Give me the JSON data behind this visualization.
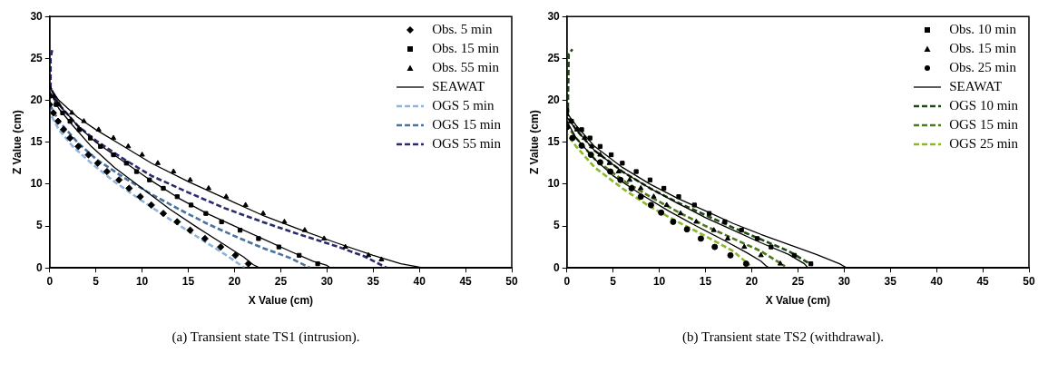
{
  "chart_data": [
    {
      "type": "scatter",
      "title": "(a) Transient state TS1 (intrusion).",
      "xlabel": "X Value (cm)",
      "ylabel": "Z Value (cm)",
      "xlim": [
        0,
        50
      ],
      "ylim": [
        0,
        30
      ],
      "xticks": [
        0,
        5,
        10,
        15,
        20,
        25,
        30,
        35,
        40,
        45,
        50
      ],
      "yticks": [
        0,
        5,
        10,
        15,
        20,
        25,
        30
      ],
      "grid": false,
      "legend": "top right",
      "series": [
        {
          "name": "Obs. 5 min",
          "color": "#000000",
          "marker": "diamond",
          "x": [
            0,
            0.4,
            0.9,
            1.5,
            2.2,
            3.1,
            4.2,
            5.2,
            6.2,
            7.5,
            8.6,
            9.8,
            11,
            12.3,
            13.8,
            15.2,
            16.8,
            18.5,
            20.1,
            21.5
          ],
          "values": [
            19.5,
            18.5,
            17.5,
            16.5,
            15.5,
            14.5,
            13.5,
            12.5,
            11.5,
            10.5,
            9.5,
            8.5,
            7.5,
            6.5,
            5.5,
            4.5,
            3.5,
            2.5,
            1.5,
            0.5
          ]
        },
        {
          "name": "Obs. 15 min",
          "color": "#000000",
          "marker": "square",
          "x": [
            0,
            0.7,
            1.4,
            2.2,
            3.2,
            4.4,
            5.5,
            6.9,
            8.3,
            9.4,
            10.8,
            12.3,
            13.8,
            15.3,
            16.9,
            18.6,
            20.6,
            22.6,
            24.8,
            27.0,
            29.0
          ],
          "values": [
            20.5,
            19.5,
            18.5,
            17.5,
            16.5,
            15.5,
            14.5,
            13.5,
            12.5,
            11.5,
            10.5,
            9.5,
            8.5,
            7.5,
            6.5,
            5.5,
            4.5,
            3.5,
            2.5,
            1.5,
            0.5
          ]
        },
        {
          "name": "Obs. 55 min",
          "color": "#000000",
          "marker": "triangle",
          "x": [
            0,
            0.5,
            1.0,
            2.4,
            3.7,
            5.3,
            6.9,
            8.5,
            10.0,
            11.7,
            13.4,
            15.2,
            17.2,
            19.1,
            21.2,
            23.1,
            25.4,
            27.6,
            29.7,
            32.0,
            34.5,
            35.9
          ],
          "values": [
            21.5,
            20.5,
            19.5,
            18.5,
            17.5,
            16.5,
            15.5,
            14.5,
            13.5,
            12.5,
            11.5,
            10.5,
            9.5,
            8.5,
            7.5,
            6.5,
            5.5,
            4.5,
            3.5,
            2.5,
            1.5,
            1.0
          ]
        },
        {
          "type": "line",
          "name": "SEAWAT",
          "color": "#000000",
          "marker": "none",
          "line_style": "solid",
          "x": [
            0,
            1,
            2.5,
            4.5,
            7,
            10,
            13,
            16,
            19,
            21,
            22,
            22.7
          ],
          "values": [
            21,
            19,
            17,
            14.5,
            12,
            9.5,
            7,
            4.8,
            2.7,
            1.3,
            0.4,
            0
          ]
        },
        {
          "type": "line",
          "color": "#000000",
          "marker": "none",
          "line_style": "solid",
          "x": [
            0,
            1,
            3,
            5,
            8,
            11,
            14,
            17,
            20,
            23,
            26,
            28.5,
            30,
            30.4
          ],
          "values": [
            21,
            19.5,
            17,
            15,
            12.7,
            10.4,
            8.3,
            6.5,
            5,
            3.5,
            2,
            0.8,
            0.3,
            0
          ]
        },
        {
          "type": "line",
          "color": "#000000",
          "marker": "none",
          "line_style": "solid",
          "x": [
            0,
            1,
            3,
            5,
            8,
            11,
            15,
            19,
            23,
            27,
            31,
            35,
            38,
            39.5,
            40.4
          ],
          "values": [
            21.5,
            20,
            18,
            16.5,
            14.5,
            12.5,
            10.3,
            8.3,
            6.3,
            4.6,
            3,
            1.5,
            0.5,
            0.2,
            0
          ]
        },
        {
          "type": "line",
          "name": "OGS 5 min",
          "color": "#92b4dc",
          "marker": "none",
          "line_style": "dashed",
          "x": [
            0,
            1,
            2.5,
            4.5,
            7,
            10,
            13,
            16,
            19,
            21.1
          ],
          "values": [
            18.5,
            16.5,
            14.5,
            12.5,
            10.3,
            8,
            5.8,
            3.7,
            1.6,
            0
          ]
        },
        {
          "type": "line",
          "name": "OGS 15 min",
          "color": "#4a73a0",
          "marker": "none",
          "line_style": "dashed",
          "x": [
            0,
            1,
            3,
            5,
            8,
            11,
            14,
            17,
            20,
            23,
            26,
            28.2
          ],
          "values": [
            19.5,
            17.5,
            15,
            13,
            10.8,
            8.8,
            7,
            5.3,
            3.8,
            2.4,
            1.2,
            0
          ]
        },
        {
          "type": "line",
          "name": "OGS 55 min",
          "color": "#2a2a6e",
          "marker": "none",
          "line_style": "dashed",
          "x": [
            0.3,
            0.1,
            0.1,
            1,
            3,
            5,
            8,
            11,
            15,
            19,
            23,
            27,
            31,
            34,
            36.5
          ],
          "values": [
            26.2,
            25,
            21.5,
            19.5,
            17,
            15.2,
            13,
            11,
            9,
            7.1,
            5.5,
            4,
            2.6,
            1.4,
            0
          ]
        }
      ]
    },
    {
      "type": "scatter",
      "title": "(b) Transient state TS2 (withdrawal).",
      "xlabel": "X Value (cm)",
      "ylabel": "Z Value (cm)",
      "xlim": [
        0,
        50
      ],
      "ylim": [
        0,
        30
      ],
      "xticks": [
        0,
        5,
        10,
        15,
        20,
        25,
        30,
        35,
        40,
        45,
        50
      ],
      "yticks": [
        0,
        5,
        10,
        15,
        20,
        25,
        30
      ],
      "grid": false,
      "legend": "top right",
      "series": [
        {
          "name": "Obs. 10 min",
          "color": "#000000",
          "marker": "square",
          "x": [
            0,
            0.5,
            1.6,
            2.5,
            3.6,
            4.8,
            6.0,
            7.5,
            9.0,
            10.5,
            12.1,
            13.8,
            15.4,
            17.1,
            18.9,
            20.6,
            22.1,
            24.6,
            26.4
          ],
          "values": [
            18.8,
            17.5,
            16.5,
            15.5,
            14.5,
            13.5,
            12.5,
            11.5,
            10.5,
            9.5,
            8.5,
            7.5,
            6.5,
            5.5,
            4.5,
            3.5,
            2.5,
            1.5,
            0.5
          ]
        },
        {
          "name": "Obs. 15 min",
          "color": "#000000",
          "marker": "triangle",
          "x": [
            0,
            0.4,
            1.1,
            1.9,
            2.7,
            3.6,
            4.6,
            5.6,
            6.8,
            8.0,
            9.4,
            10.8,
            12.3,
            14.0,
            15.9,
            17.4,
            19.2,
            21.0,
            23.1
          ],
          "values": [
            18.3,
            17.5,
            16.5,
            15.5,
            14.5,
            13.5,
            12.5,
            11.5,
            10.5,
            9.5,
            8.5,
            7.5,
            6.5,
            5.5,
            4.5,
            3.5,
            2.5,
            1.5,
            0.5
          ]
        },
        {
          "name": "Obs. 25 min",
          "color": "#000000",
          "marker": "circle",
          "x": [
            0,
            0.6,
            1.6,
            2.6,
            3.6,
            4.7,
            5.8,
            7.0,
            8.0,
            9.1,
            10.2,
            11.5,
            13.0,
            14.5,
            16.0,
            17.7,
            19.4
          ],
          "values": [
            16.8,
            15.5,
            14.6,
            13.5,
            12.6,
            11.5,
            10.5,
            9.5,
            8.5,
            7.5,
            6.6,
            5.5,
            4.6,
            3.5,
            2.5,
            1.5,
            0.5
          ]
        },
        {
          "type": "line",
          "name": "SEAWAT",
          "color": "#000000",
          "marker": "none",
          "line_style": "solid",
          "x": [
            0,
            1,
            3,
            6,
            9,
            12,
            15,
            18,
            21,
            24,
            27,
            29.5,
            30.3
          ],
          "values": [
            18.5,
            17,
            14.5,
            12,
            10,
            8.3,
            6.8,
            5.3,
            4,
            2.8,
            1.6,
            0.5,
            0
          ]
        },
        {
          "type": "line",
          "color": "#000000",
          "marker": "none",
          "line_style": "solid",
          "x": [
            0,
            1,
            3,
            6,
            9,
            12,
            15,
            18,
            21,
            24,
            25.7,
            26.1
          ],
          "values": [
            18,
            16.5,
            14,
            11.5,
            9.5,
            7.7,
            6,
            4.5,
            3,
            1.6,
            0.5,
            0
          ]
        },
        {
          "type": "line",
          "color": "#000000",
          "marker": "none",
          "line_style": "solid",
          "x": [
            0,
            1,
            3,
            5,
            8,
            11,
            14,
            17,
            19.5,
            21,
            21.5,
            21.9
          ],
          "values": [
            17.5,
            15.5,
            13,
            11,
            8.8,
            6.8,
            5,
            3.3,
            1.8,
            0.8,
            0.3,
            0
          ]
        },
        {
          "type": "line",
          "name": "OGS 10 min",
          "color": "#1f4a12",
          "marker": "none",
          "line_style": "dashed",
          "x": [
            0.6,
            0.2,
            0.1,
            1,
            3,
            6,
            9,
            12,
            15,
            18,
            21,
            24,
            26.6
          ],
          "values": [
            26.1,
            25.5,
            18,
            16.5,
            14,
            11.5,
            9.5,
            7.8,
            6.3,
            4.8,
            3.4,
            2,
            0.3
          ]
        },
        {
          "type": "line",
          "name": "OGS 15 min",
          "color": "#4e7a1a",
          "marker": "none",
          "line_style": "dashed",
          "x": [
            0,
            1,
            3,
            6,
            9,
            12,
            15,
            18,
            21,
            23.6
          ],
          "values": [
            17,
            15.5,
            13,
            10.5,
            8.5,
            6.7,
            5,
            3.5,
            2,
            0.2
          ]
        },
        {
          "type": "line",
          "name": "OGS 25 min",
          "color": "#8ab829",
          "marker": "none",
          "line_style": "dashed",
          "x": [
            0,
            1,
            3,
            6,
            9,
            12,
            15,
            18,
            19.8
          ],
          "values": [
            16,
            14.5,
            12,
            9.5,
            7.3,
            5.5,
            3.8,
            2,
            0.3
          ]
        }
      ]
    }
  ]
}
